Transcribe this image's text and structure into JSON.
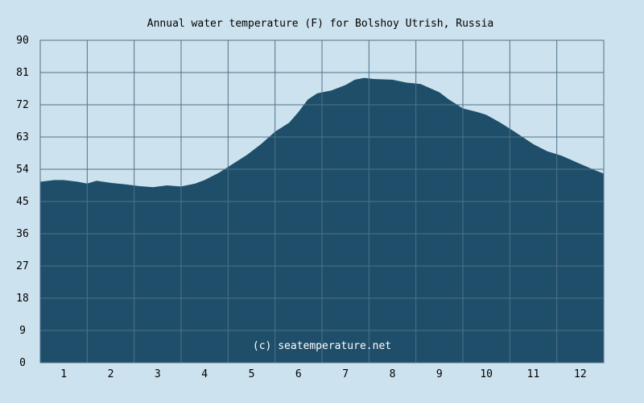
{
  "chart_data": {
    "type": "area",
    "title": "Annual water temperature (F) for Bolshoy Utrish, Russia",
    "xlabel": "",
    "ylabel": "",
    "watermark": "(c) seatemperature.net",
    "x_ticks": [
      "1",
      "2",
      "3",
      "4",
      "5",
      "6",
      "7",
      "8",
      "9",
      "10",
      "11",
      "12"
    ],
    "y_ticks": [
      "0",
      "9",
      "18",
      "27",
      "36",
      "45",
      "54",
      "63",
      "72",
      "81",
      "90"
    ],
    "xlim": [
      0.5,
      12.5
    ],
    "ylim": [
      0,
      90
    ],
    "grid": true,
    "colors": {
      "background": "#cce2ee",
      "fill": "#1f4e6a",
      "grid": "#4f7288"
    },
    "series": [
      {
        "x": [
          0.5,
          0.8,
          1.0,
          1.3,
          1.5,
          1.7,
          2.0,
          2.3,
          2.6,
          2.9,
          3.2,
          3.5,
          3.8,
          4.0,
          4.3,
          4.6,
          4.9,
          5.2,
          5.5,
          5.8,
          6.0,
          6.2,
          6.4,
          6.7,
          7.0,
          7.2,
          7.4,
          7.6,
          8.0,
          8.3,
          8.6,
          9.0,
          9.2,
          9.5,
          9.8,
          10.0,
          10.3,
          10.6,
          11.0,
          11.3,
          11.6,
          12.0,
          12.3,
          12.5
        ],
        "values": [
          50.5,
          51,
          51,
          50.5,
          50,
          50.8,
          50.2,
          49.8,
          49.3,
          49,
          49.5,
          49.2,
          50,
          51,
          53,
          55.5,
          58,
          61,
          64.5,
          67,
          70,
          73.5,
          75.2,
          76,
          77.5,
          79,
          79.5,
          79.2,
          79,
          78.2,
          77.8,
          75.5,
          73.5,
          71,
          70,
          69.2,
          67,
          64.5,
          61,
          59,
          57.8,
          55.5,
          53.8,
          52.8
        ]
      }
    ]
  }
}
